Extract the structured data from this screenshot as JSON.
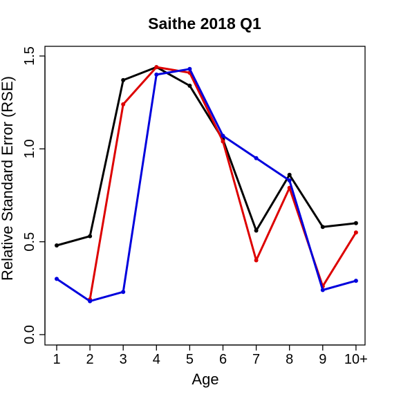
{
  "chart_data": {
    "type": "line",
    "title": "Saithe 2018 Q1",
    "xlabel": "Age",
    "ylabel": "Relative Standard Error (RSE)",
    "categories": [
      "1",
      "2",
      "3",
      "4",
      "5",
      "6",
      "7",
      "8",
      "9",
      "10+"
    ],
    "yticks": [
      "0.0",
      "0.5",
      "1.0",
      "1.5"
    ],
    "ylim": [
      0,
      1.5
    ],
    "grid": false,
    "legend": "none",
    "series": [
      {
        "color": "#000000",
        "values": [
          0.48,
          0.53,
          1.37,
          1.44,
          1.34,
          1.05,
          0.56,
          0.86,
          0.58,
          0.6
        ]
      },
      {
        "color": "#dd0000",
        "values": [
          null,
          0.19,
          1.24,
          1.44,
          1.41,
          1.04,
          0.4,
          0.79,
          0.26,
          0.55
        ]
      },
      {
        "color": "#0000dd",
        "values": [
          0.3,
          0.18,
          0.23,
          1.4,
          1.43,
          1.07,
          0.95,
          0.83,
          0.24,
          0.29
        ]
      }
    ]
  }
}
